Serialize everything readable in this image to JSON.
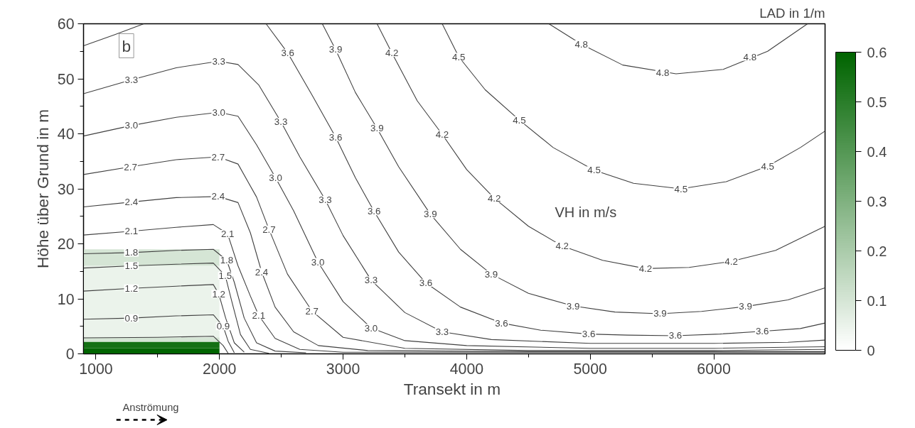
{
  "chart_data": {
    "type": "line",
    "xlabel": "Transekt  in m",
    "ylabel": "Höhe über Grund in m",
    "clabel": "LAD in 1/m",
    "xlim": [
      900,
      6900
    ],
    "xticks": [
      1000,
      2000,
      3000,
      4000,
      5000,
      6000
    ],
    "ylim": [
      0,
      60
    ],
    "yticks": [
      0,
      10,
      20,
      30,
      40,
      50,
      60
    ],
    "clim": [
      0,
      0.6
    ],
    "cticks": [
      0,
      0.1,
      0.2,
      0.3,
      0.4,
      0.5,
      0.6
    ],
    "grid": false,
    "marker": "none",
    "line_style": "solid",
    "series": [
      {
        "type": "bar",
        "x": [
          1450
        ],
        "base": [
          0
        ],
        "values": [
          1
        ],
        "cvalues": [
          0.6
        ]
      },
      {
        "type": "bar",
        "x": [
          1450
        ],
        "base": [
          1
        ],
        "values": [
          1.2
        ],
        "cvalues": [
          0.55
        ]
      },
      {
        "type": "bar",
        "x": [
          1450
        ],
        "base": [
          2.2
        ],
        "values": [
          0.8
        ],
        "cvalues": [
          0.1
        ]
      },
      {
        "type": "bar",
        "x": [
          1450
        ],
        "base": [
          3
        ],
        "values": [
          13
        ],
        "cvalues": [
          0.05
        ]
      },
      {
        "type": "bar",
        "x": [
          1450
        ],
        "base": [
          16
        ],
        "values": [
          3
        ],
        "cvalues": [
          0.1
        ]
      },
      {
        "color": "#404040",
        "x": [
          4665,
          4928,
          5263,
          5694,
          6076,
          6435,
          6758
        ],
        "values": [
          60,
          56.3,
          52.5,
          50.9,
          51.7,
          55,
          60
        ]
      },
      {
        "color": "#404040",
        "x": [
          3802,
          3936,
          4150,
          4426,
          4700,
          5031,
          5350,
          5734,
          6100,
          6435,
          6700,
          6900
        ],
        "values": [
          60,
          54,
          48,
          42.5,
          37.5,
          33.4,
          31,
          30,
          31.3,
          34.1,
          37.5,
          40.5
        ]
      },
      {
        "color": "#404040",
        "x": [
          3275,
          3395,
          3600,
          3802,
          4000,
          4223,
          4500,
          4773,
          5100,
          5447,
          5800,
          6141,
          6500,
          6900
        ],
        "values": [
          60,
          54.7,
          46,
          39.9,
          33.5,
          28.3,
          23.2,
          19.6,
          17,
          15.5,
          15.7,
          16.8,
          18.8,
          23.2
        ]
      },
      {
        "color": "#404040",
        "x": [
          2832,
          2940,
          3100,
          3275,
          3450,
          3706,
          3950,
          4199,
          4500,
          4861,
          5200,
          5565,
          5900,
          6256,
          6600,
          6900
        ],
        "values": [
          60,
          55.3,
          47.5,
          41,
          34,
          25.4,
          19,
          14.5,
          11,
          8.7,
          7.6,
          7.3,
          7.7,
          8.6,
          9.8,
          12
        ]
      },
      {
        "color": "#404040",
        "x": [
          2377,
          2552,
          2750,
          2940,
          3100,
          3251,
          3450,
          3670,
          3950,
          4282,
          4600,
          4988,
          5300,
          5689,
          6050,
          6392,
          6700,
          6900
        ],
        "values": [
          60,
          54.7,
          47,
          39.4,
          32,
          25.9,
          18.5,
          12.9,
          8.5,
          5.6,
          4.3,
          3.6,
          3.4,
          3.3,
          3.6,
          4.1,
          4.6,
          5.6
        ]
      },
      {
        "color": "#404040",
        "x": [
          900,
          1150,
          1388
        ],
        "values": [
          56,
          58,
          60
        ]
      },
      {
        "color": "#404040",
        "x": [
          900,
          1287,
          1650,
          1994,
          2150,
          2317,
          2497,
          2650,
          2856,
          3000,
          3227,
          3500,
          3802,
          4200,
          5000,
          6000,
          6600,
          6900
        ],
        "values": [
          47.3,
          49.8,
          52,
          53.2,
          52.6,
          48.9,
          42.2,
          35.8,
          28,
          21.5,
          13.4,
          7.5,
          4,
          2.6,
          1.9,
          1.9,
          2.1,
          2.5
        ]
      },
      {
        "color": "#404040",
        "x": [
          900,
          1287,
          1650,
          1994,
          2150,
          2300,
          2454,
          2600,
          2796,
          3000,
          3227,
          3500,
          4000,
          5000,
          6000,
          6900
        ],
        "values": [
          39.6,
          41.5,
          43,
          43.9,
          43.2,
          38,
          32,
          26,
          16.7,
          9.5,
          4.7,
          2.4,
          1.5,
          1,
          1,
          1.3
        ]
      },
      {
        "color": "#404040",
        "x": [
          900,
          1280,
          1650,
          1989,
          2150,
          2300,
          2401,
          2550,
          2748,
          3000,
          3500,
          4500,
          6000,
          6900
        ],
        "values": [
          32.6,
          34,
          35.3,
          35.8,
          34.5,
          28.5,
          22.6,
          14.5,
          7.8,
          3,
          1,
          0.6,
          0.6,
          0.8
        ]
      },
      {
        "color": "#404040",
        "x": [
          900,
          1287,
          1650,
          1989,
          2150,
          2250,
          2341,
          2450,
          2600,
          2800,
          3200,
          4500,
          6900
        ],
        "values": [
          26.7,
          27.6,
          28.4,
          28.6,
          27.5,
          22,
          14.9,
          8.5,
          4,
          1.5,
          0.6,
          0.4,
          0.4
        ]
      },
      {
        "color": "#404040",
        "x": [
          900,
          1287,
          1650,
          1950,
          2066,
          2150,
          2250,
          2317,
          2450,
          2650,
          3000,
          6900
        ],
        "values": [
          21.6,
          22.3,
          23,
          23.5,
          21.8,
          16,
          10.5,
          7,
          2.8,
          0.8,
          0.3,
          0.3
        ]
      },
      {
        "color": "#404040",
        "x": [
          900,
          1287,
          1650,
          1950,
          2059,
          2120,
          2200,
          2300,
          2450,
          2700
        ],
        "values": [
          18.2,
          18.4,
          18.8,
          19,
          17,
          13,
          6.5,
          2,
          0.5,
          0.2
        ]
      },
      {
        "color": "#404040",
        "x": [
          900,
          1287,
          1650,
          1950,
          2047,
          2100,
          2170,
          2250,
          2400
        ],
        "values": [
          15.6,
          16,
          16.3,
          16.5,
          14.2,
          9.5,
          3.5,
          0.8,
          0.1
        ]
      },
      {
        "color": "#404040",
        "x": [
          900,
          1287,
          1650,
          1950,
          1994,
          2050,
          2120,
          2200
        ],
        "values": [
          11.4,
          11.9,
          12.3,
          12.6,
          10.9,
          6.5,
          2,
          0.3
        ]
      },
      {
        "color": "#404040",
        "x": [
          900,
          1287,
          1650,
          1950,
          2030,
          2070,
          2120
        ],
        "values": [
          6.3,
          6.5,
          6.9,
          7.1,
          5,
          2.3,
          0.2
        ]
      },
      {
        "color": "#404040",
        "x": [
          900,
          1500,
          1950,
          2030,
          2070
        ],
        "values": [
          2.9,
          3,
          3.2,
          1.5,
          0.1
        ]
      }
    ],
    "annotations": [
      "b",
      "VH in m/s",
      "Anströmung",
      {
        "text": "3.3",
        "x": 1287,
        "y": 49.8
      },
      {
        "text": "3.3",
        "x": 1994,
        "y": 53.2
      },
      {
        "text": "3.0",
        "x": 1287,
        "y": 41.5
      },
      {
        "text": "3.0",
        "x": 1994,
        "y": 43.9
      },
      {
        "text": "2.7",
        "x": 1280,
        "y": 34
      },
      {
        "text": "2.7",
        "x": 1989,
        "y": 35.8
      },
      {
        "text": "2.4",
        "x": 1287,
        "y": 27.6
      },
      {
        "text": "2.4",
        "x": 1989,
        "y": 28.6
      },
      {
        "text": "2.1",
        "x": 1287,
        "y": 22.3
      },
      {
        "text": "2.1",
        "x": 2066,
        "y": 21.8
      },
      {
        "text": "1.8",
        "x": 1287,
        "y": 18.4
      },
      {
        "text": "1.8",
        "x": 2059,
        "y": 17
      },
      {
        "text": "1.5",
        "x": 1287,
        "y": 16
      },
      {
        "text": "1.5",
        "x": 2047,
        "y": 14.2
      },
      {
        "text": "1.2",
        "x": 1287,
        "y": 11.9
      },
      {
        "text": "1.2",
        "x": 1994,
        "y": 10.9
      },
      {
        "text": "0.9",
        "x": 1287,
        "y": 6.5
      },
      {
        "text": "0.9",
        "x": 2030,
        "y": 5
      },
      {
        "text": "3.6",
        "x": 2552,
        "y": 54.7
      },
      {
        "text": "3.3",
        "x": 2497,
        "y": 42.2
      },
      {
        "text": "3.0",
        "x": 2454,
        "y": 32
      },
      {
        "text": "2.7",
        "x": 2401,
        "y": 22.6
      },
      {
        "text": "2.4",
        "x": 2341,
        "y": 14.9
      },
      {
        "text": "2.1",
        "x": 2317,
        "y": 7
      },
      {
        "text": "3.9",
        "x": 2940,
        "y": 55.3
      },
      {
        "text": "3.6",
        "x": 2940,
        "y": 39.4
      },
      {
        "text": "3.3",
        "x": 2856,
        "y": 28
      },
      {
        "text": "3.0",
        "x": 2796,
        "y": 16.7
      },
      {
        "text": "2.7",
        "x": 2748,
        "y": 7.8
      },
      {
        "text": "4.2",
        "x": 3395,
        "y": 54.7
      },
      {
        "text": "3.9",
        "x": 3275,
        "y": 41
      },
      {
        "text": "3.6",
        "x": 3251,
        "y": 25.9
      },
      {
        "text": "3.3",
        "x": 3227,
        "y": 13.4
      },
      {
        "text": "3.0",
        "x": 3227,
        "y": 4.7
      },
      {
        "text": "4.5",
        "x": 3936,
        "y": 54
      },
      {
        "text": "4.2",
        "x": 3802,
        "y": 39.9
      },
      {
        "text": "3.9",
        "x": 3706,
        "y": 25.4
      },
      {
        "text": "3.6",
        "x": 3670,
        "y": 12.9
      },
      {
        "text": "3.3",
        "x": 3802,
        "y": 4
      },
      {
        "text": "4.8",
        "x": 4928,
        "y": 56.3
      },
      {
        "text": "4.8",
        "x": 5586,
        "y": 51.1
      },
      {
        "text": "4.8",
        "x": 6292,
        "y": 54
      },
      {
        "text": "4.5",
        "x": 4426,
        "y": 42.5
      },
      {
        "text": "4.5",
        "x": 5031,
        "y": 33.4
      },
      {
        "text": "4.5",
        "x": 5734,
        "y": 30
      },
      {
        "text": "4.5",
        "x": 6435,
        "y": 34.1
      },
      {
        "text": "4.2",
        "x": 4223,
        "y": 28.3
      },
      {
        "text": "4.2",
        "x": 4773,
        "y": 19.6
      },
      {
        "text": "4.2",
        "x": 5447,
        "y": 15.5
      },
      {
        "text": "4.2",
        "x": 6141,
        "y": 16.8
      },
      {
        "text": "3.9",
        "x": 4199,
        "y": 14.5
      },
      {
        "text": "3.9",
        "x": 4861,
        "y": 8.7
      },
      {
        "text": "3.9",
        "x": 5565,
        "y": 7.3
      },
      {
        "text": "3.9",
        "x": 6256,
        "y": 8.6
      },
      {
        "text": "3.6",
        "x": 4282,
        "y": 5.6
      },
      {
        "text": "3.6",
        "x": 4988,
        "y": 3.6
      },
      {
        "text": "3.6",
        "x": 5689,
        "y": 3.3
      },
      {
        "text": "3.6",
        "x": 6392,
        "y": 4.1
      }
    ]
  }
}
